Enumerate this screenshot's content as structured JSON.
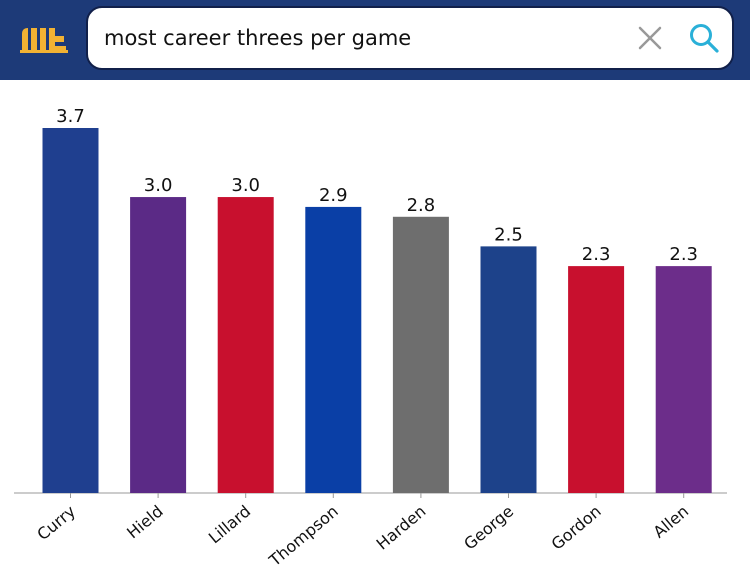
{
  "header": {
    "background_color": "#1d3a78",
    "logo_icon": "bar-logo-icon",
    "logo_color": "#f2b233"
  },
  "search": {
    "query": "most career threes per game",
    "clear_icon": "close-icon",
    "search_icon": "search-icon",
    "search_icon_color": "#2ab0d8"
  },
  "chart_data": {
    "type": "bar",
    "categories": [
      "Curry",
      "Hield",
      "Lillard",
      "Thompson",
      "Harden",
      "George",
      "Gordon",
      "Allen"
    ],
    "values": [
      3.7,
      3.0,
      3.0,
      2.9,
      2.8,
      2.5,
      2.3,
      2.3
    ],
    "value_labels": [
      "3.7",
      "3.0",
      "3.0",
      "2.9",
      "2.8",
      "2.5",
      "2.3",
      "2.3"
    ],
    "colors": [
      "#1f3f8f",
      "#5b2a86",
      "#c8102e",
      "#0a3fa6",
      "#6e6e6e",
      "#1d428a",
      "#c8102e",
      "#6c2d8a"
    ],
    "ylim": [
      0,
      3.7
    ],
    "grid": false,
    "legend": "none"
  }
}
